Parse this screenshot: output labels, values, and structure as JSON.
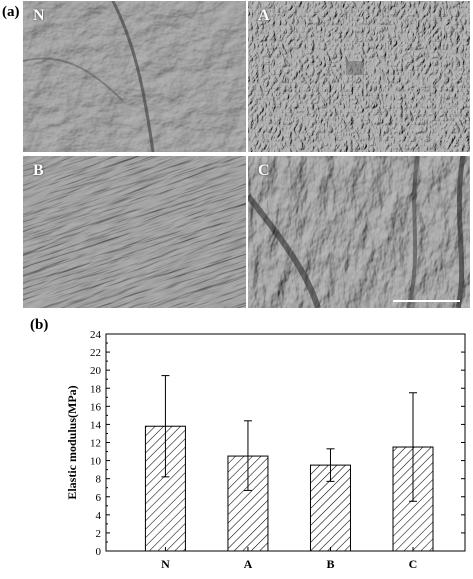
{
  "figure": {
    "panel_a_label": "(a)",
    "panel_b_label": "(b)",
    "micrographs": [
      {
        "id": "N",
        "label": "N",
        "texture": "smooth-ridged"
      },
      {
        "id": "A",
        "label": "A",
        "texture": "fibrous-mesh"
      },
      {
        "id": "B",
        "label": "B",
        "texture": "aligned-fibers"
      },
      {
        "id": "C",
        "label": "C",
        "texture": "folded-fibrous"
      }
    ],
    "colors": {
      "micrograph_base": "#8a8a8a",
      "tile_text": "#ffffff",
      "scale_bar": "#ffffff",
      "bar_hatch": "#000000",
      "axis": "#000000"
    }
  },
  "chart_data": {
    "type": "bar",
    "categories": [
      "N",
      "A",
      "B",
      "C"
    ],
    "values": [
      13.8,
      10.5,
      9.5,
      11.5
    ],
    "error_upper": [
      19.4,
      14.4,
      11.3,
      17.5
    ],
    "error_lower": [
      8.2,
      6.7,
      7.7,
      5.5
    ],
    "ylabel": "Elastic modulus(MPa)",
    "xlabel": "",
    "ylim": [
      0,
      24
    ],
    "yticks": [
      0,
      2,
      4,
      6,
      8,
      10,
      12,
      14,
      16,
      18,
      20,
      22,
      24
    ],
    "bar_fill": "diagonal-hatch",
    "grid": false,
    "legend": "none"
  }
}
